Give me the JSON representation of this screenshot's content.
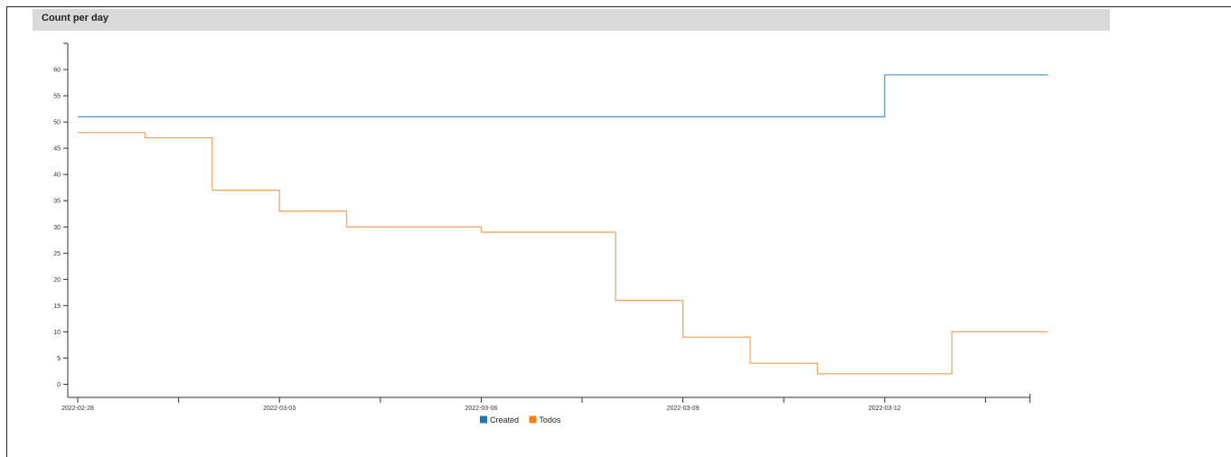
{
  "panel": {
    "title": "Count per day"
  },
  "chart_data": {
    "type": "line",
    "step": "after",
    "x": [
      "2022-02-28",
      "2022-03-01",
      "2022-03-02",
      "2022-03-03",
      "2022-03-04",
      "2022-03-05",
      "2022-03-06",
      "2022-03-07",
      "2022-03-08",
      "2022-03-09",
      "2022-03-10",
      "2022-03-11",
      "2022-03-12",
      "2022-03-13"
    ],
    "series": [
      {
        "name": "Created",
        "color": "#5b9bd5",
        "values": [
          51,
          51,
          51,
          51,
          51,
          51,
          51,
          51,
          51,
          51,
          51,
          51,
          59,
          59
        ]
      },
      {
        "name": "Todos",
        "color": "#f4a460",
        "values": [
          48,
          47,
          37,
          33,
          30,
          30,
          29,
          29,
          16,
          9,
          4,
          2,
          2,
          10
        ]
      }
    ],
    "x_ticks": [
      "2022-02-28",
      "2022-03-03",
      "2022-03-06",
      "2022-03-09",
      "2022-03-12"
    ],
    "y_ticks": [
      0,
      5,
      10,
      15,
      20,
      25,
      30,
      35,
      40,
      45,
      50,
      55,
      60
    ],
    "ylim": [
      -2.5,
      65
    ],
    "xlim_extra": "2022-03-14",
    "legend_position": "bottom-center",
    "legend": [
      {
        "label": "Created",
        "color": "#1f77b4"
      },
      {
        "label": "Todos",
        "color": "#ff7f0e"
      }
    ],
    "grid": false
  }
}
